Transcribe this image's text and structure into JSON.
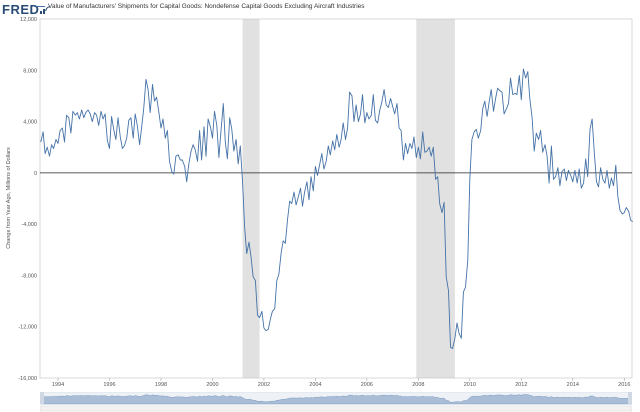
{
  "header": {
    "logo_text": "FRED",
    "legend_label": "Value of Manufacturers' Shipments for Capital Goods: Nondefense Capital Goods Excluding Aircraft Industries"
  },
  "chart_data": {
    "type": "line",
    "title": "",
    "xlabel": "",
    "ylabel": "Change from Year Ago, Millions of Dollars",
    "xlim": [
      1993.3,
      2016.3
    ],
    "ylim": [
      -16000,
      12000
    ],
    "x_ticks": [
      "1994",
      "1996",
      "1998",
      "2000",
      "2002",
      "2004",
      "2006",
      "2008",
      "2010",
      "2012",
      "2014",
      "2016"
    ],
    "y_ticks": [
      "12,000",
      "8,000",
      "4,000",
      "0",
      "-4,000",
      "-8,000",
      "-12,000",
      "-16,000"
    ],
    "grid": false,
    "zero_line": true,
    "line_color": "#4572a7",
    "recession_color": "#e1e1e1",
    "recessions": [
      {
        "start": 2001.17,
        "end": 2001.83
      },
      {
        "start": 2007.92,
        "end": 2009.42
      }
    ],
    "series": [
      {
        "name": "Value of Manufacturers' Shipments for Capital Goods: Nondefense Capital Goods Excluding Aircraft Industries",
        "points": [
          [
            1993.33,
            2400
          ],
          [
            1993.42,
            3200
          ],
          [
            1993.5,
            1500
          ],
          [
            1993.58,
            2000
          ],
          [
            1993.67,
            1300
          ],
          [
            1993.75,
            2200
          ],
          [
            1993.83,
            1900
          ],
          [
            1993.92,
            2600
          ],
          [
            1994.0,
            2300
          ],
          [
            1994.08,
            3300
          ],
          [
            1994.17,
            3500
          ],
          [
            1994.25,
            2400
          ],
          [
            1994.33,
            4500
          ],
          [
            1994.42,
            4300
          ],
          [
            1994.5,
            3100
          ],
          [
            1994.58,
            4800
          ],
          [
            1994.67,
            4500
          ],
          [
            1994.75,
            4700
          ],
          [
            1994.83,
            4200
          ],
          [
            1994.92,
            4900
          ],
          [
            1995.0,
            4300
          ],
          [
            1995.08,
            4700
          ],
          [
            1995.17,
            4900
          ],
          [
            1995.25,
            4600
          ],
          [
            1995.33,
            4000
          ],
          [
            1995.42,
            4700
          ],
          [
            1995.5,
            4500
          ],
          [
            1995.58,
            3700
          ],
          [
            1995.67,
            4800
          ],
          [
            1995.75,
            4200
          ],
          [
            1995.83,
            4600
          ],
          [
            1995.92,
            2500
          ],
          [
            1996.0,
            1900
          ],
          [
            1996.08,
            4400
          ],
          [
            1996.17,
            3300
          ],
          [
            1996.25,
            2600
          ],
          [
            1996.33,
            4300
          ],
          [
            1996.42,
            2800
          ],
          [
            1996.5,
            1900
          ],
          [
            1996.58,
            2100
          ],
          [
            1996.67,
            2700
          ],
          [
            1996.75,
            4100
          ],
          [
            1996.83,
            4300
          ],
          [
            1996.92,
            2700
          ],
          [
            1997.0,
            4600
          ],
          [
            1997.08,
            3700
          ],
          [
            1997.17,
            2200
          ],
          [
            1997.25,
            3600
          ],
          [
            1997.33,
            5000
          ],
          [
            1997.42,
            7300
          ],
          [
            1997.5,
            6500
          ],
          [
            1997.58,
            4700
          ],
          [
            1997.67,
            6900
          ],
          [
            1997.75,
            5600
          ],
          [
            1997.83,
            5900
          ],
          [
            1997.92,
            4700
          ],
          [
            1998.0,
            3500
          ],
          [
            1998.08,
            4200
          ],
          [
            1998.17,
            2700
          ],
          [
            1998.25,
            3300
          ],
          [
            1998.33,
            900
          ],
          [
            1998.42,
            100
          ],
          [
            1998.5,
            -100
          ],
          [
            1998.58,
            1300
          ],
          [
            1998.67,
            1400
          ],
          [
            1998.75,
            1000
          ],
          [
            1998.83,
            1000
          ],
          [
            1998.92,
            500
          ],
          [
            1999.0,
            -700
          ],
          [
            1999.08,
            700
          ],
          [
            1999.17,
            1700
          ],
          [
            1999.25,
            2200
          ],
          [
            1999.33,
            1800
          ],
          [
            1999.42,
            900
          ],
          [
            1999.5,
            3300
          ],
          [
            1999.58,
            1000
          ],
          [
            1999.67,
            3600
          ],
          [
            1999.75,
            1300
          ],
          [
            1999.83,
            4200
          ],
          [
            1999.92,
            3600
          ],
          [
            2000.0,
            2700
          ],
          [
            2000.08,
            4800
          ],
          [
            2000.17,
            3700
          ],
          [
            2000.25,
            1200
          ],
          [
            2000.33,
            3200
          ],
          [
            2000.42,
            5400
          ],
          [
            2000.5,
            2400
          ],
          [
            2000.58,
            1100
          ],
          [
            2000.67,
            4300
          ],
          [
            2000.75,
            3400
          ],
          [
            2000.83,
            1700
          ],
          [
            2000.92,
            2600
          ],
          [
            2001.0,
            700
          ],
          [
            2001.08,
            2100
          ],
          [
            2001.17,
            -800
          ],
          [
            2001.25,
            -4200
          ],
          [
            2001.33,
            -6300
          ],
          [
            2001.42,
            -5400
          ],
          [
            2001.5,
            -6600
          ],
          [
            2001.58,
            -8100
          ],
          [
            2001.67,
            -8400
          ],
          [
            2001.75,
            -11100
          ],
          [
            2001.83,
            -11300
          ],
          [
            2001.92,
            -10800
          ],
          [
            2002.0,
            -12100
          ],
          [
            2002.08,
            -12300
          ],
          [
            2002.17,
            -12200
          ],
          [
            2002.25,
            -11400
          ],
          [
            2002.33,
            -10800
          ],
          [
            2002.42,
            -10600
          ],
          [
            2002.5,
            -8400
          ],
          [
            2002.58,
            -7900
          ],
          [
            2002.67,
            -6200
          ],
          [
            2002.75,
            -5300
          ],
          [
            2002.83,
            -5500
          ],
          [
            2002.92,
            -3600
          ],
          [
            2003.0,
            -2200
          ],
          [
            2003.08,
            -2400
          ],
          [
            2003.17,
            -1500
          ],
          [
            2003.25,
            -2500
          ],
          [
            2003.33,
            -1900
          ],
          [
            2003.42,
            -1200
          ],
          [
            2003.5,
            -2600
          ],
          [
            2003.58,
            -1500
          ],
          [
            2003.67,
            -700
          ],
          [
            2003.75,
            -2100
          ],
          [
            2003.83,
            -300
          ],
          [
            2003.92,
            -1400
          ],
          [
            2004.0,
            500
          ],
          [
            2004.08,
            -200
          ],
          [
            2004.17,
            700
          ],
          [
            2004.25,
            1500
          ],
          [
            2004.33,
            300
          ],
          [
            2004.42,
            900
          ],
          [
            2004.5,
            2100
          ],
          [
            2004.58,
            1400
          ],
          [
            2004.67,
            2500
          ],
          [
            2004.75,
            1800
          ],
          [
            2004.83,
            3000
          ],
          [
            2004.92,
            2000
          ],
          [
            2005.0,
            2600
          ],
          [
            2005.08,
            3900
          ],
          [
            2005.17,
            2600
          ],
          [
            2005.25,
            3500
          ],
          [
            2005.33,
            6300
          ],
          [
            2005.42,
            6000
          ],
          [
            2005.5,
            4000
          ],
          [
            2005.58,
            5300
          ],
          [
            2005.67,
            4000
          ],
          [
            2005.75,
            4600
          ],
          [
            2005.83,
            6100
          ],
          [
            2005.92,
            3900
          ],
          [
            2006.0,
            4700
          ],
          [
            2006.08,
            4200
          ],
          [
            2006.17,
            4500
          ],
          [
            2006.25,
            6100
          ],
          [
            2006.33,
            4100
          ],
          [
            2006.42,
            3900
          ],
          [
            2006.5,
            4900
          ],
          [
            2006.58,
            5500
          ],
          [
            2006.67,
            6500
          ],
          [
            2006.75,
            5300
          ],
          [
            2006.83,
            5100
          ],
          [
            2006.92,
            5800
          ],
          [
            2007.0,
            5200
          ],
          [
            2007.08,
            4600
          ],
          [
            2007.17,
            5400
          ],
          [
            2007.25,
            3500
          ],
          [
            2007.33,
            3300
          ],
          [
            2007.42,
            1000
          ],
          [
            2007.5,
            2300
          ],
          [
            2007.58,
            1500
          ],
          [
            2007.67,
            2300
          ],
          [
            2007.75,
            1900
          ],
          [
            2007.83,
            2800
          ],
          [
            2007.92,
            1200
          ],
          [
            2008.0,
            2000
          ],
          [
            2008.08,
            1100
          ],
          [
            2008.17,
            3200
          ],
          [
            2008.25,
            1600
          ],
          [
            2008.33,
            1700
          ],
          [
            2008.42,
            2000
          ],
          [
            2008.5,
            1300
          ],
          [
            2008.58,
            2000
          ],
          [
            2008.67,
            -500
          ],
          [
            2008.75,
            -300
          ],
          [
            2008.83,
            -2400
          ],
          [
            2008.92,
            -3100
          ],
          [
            2009.0,
            -2300
          ],
          [
            2009.08,
            -8100
          ],
          [
            2009.17,
            -9200
          ],
          [
            2009.25,
            -13600
          ],
          [
            2009.33,
            -13700
          ],
          [
            2009.42,
            -12900
          ],
          [
            2009.5,
            -11700
          ],
          [
            2009.58,
            -12500
          ],
          [
            2009.67,
            -12900
          ],
          [
            2009.75,
            -9300
          ],
          [
            2009.83,
            -8900
          ],
          [
            2009.92,
            -6800
          ],
          [
            2010.0,
            -500
          ],
          [
            2010.08,
            2600
          ],
          [
            2010.17,
            3200
          ],
          [
            2010.25,
            3400
          ],
          [
            2010.33,
            2700
          ],
          [
            2010.42,
            3300
          ],
          [
            2010.5,
            5000
          ],
          [
            2010.58,
            5600
          ],
          [
            2010.67,
            4400
          ],
          [
            2010.75,
            5500
          ],
          [
            2010.83,
            6500
          ],
          [
            2010.92,
            4800
          ],
          [
            2011.0,
            5800
          ],
          [
            2011.08,
            6600
          ],
          [
            2011.17,
            6400
          ],
          [
            2011.25,
            6300
          ],
          [
            2011.33,
            4600
          ],
          [
            2011.42,
            5000
          ],
          [
            2011.5,
            5400
          ],
          [
            2011.58,
            7400
          ],
          [
            2011.67,
            6100
          ],
          [
            2011.75,
            6200
          ],
          [
            2011.83,
            6100
          ],
          [
            2011.92,
            7600
          ],
          [
            2012.0,
            5700
          ],
          [
            2012.08,
            8100
          ],
          [
            2012.17,
            7400
          ],
          [
            2012.25,
            7900
          ],
          [
            2012.33,
            5800
          ],
          [
            2012.42,
            4300
          ],
          [
            2012.5,
            1700
          ],
          [
            2012.58,
            3100
          ],
          [
            2012.67,
            2600
          ],
          [
            2012.75,
            3300
          ],
          [
            2012.83,
            1600
          ],
          [
            2012.92,
            2200
          ],
          [
            2013.0,
            1300
          ],
          [
            2013.08,
            -800
          ],
          [
            2013.17,
            2100
          ],
          [
            2013.25,
            -500
          ],
          [
            2013.33,
            -300
          ],
          [
            2013.42,
            400
          ],
          [
            2013.5,
            -1000
          ],
          [
            2013.58,
            100
          ],
          [
            2013.67,
            300
          ],
          [
            2013.75,
            -600
          ],
          [
            2013.83,
            200
          ],
          [
            2013.92,
            -200
          ],
          [
            2014.0,
            -700
          ],
          [
            2014.08,
            200
          ],
          [
            2014.17,
            -800
          ],
          [
            2014.25,
            300
          ],
          [
            2014.33,
            -1200
          ],
          [
            2014.42,
            -800
          ],
          [
            2014.5,
            1100
          ],
          [
            2014.58,
            -300
          ],
          [
            2014.67,
            3400
          ],
          [
            2014.75,
            4200
          ],
          [
            2014.83,
            1700
          ],
          [
            2014.92,
            -700
          ],
          [
            2015.0,
            -1100
          ],
          [
            2015.08,
            400
          ],
          [
            2015.17,
            -500
          ],
          [
            2015.25,
            -800
          ],
          [
            2015.33,
            200
          ],
          [
            2015.42,
            -1200
          ],
          [
            2015.5,
            -400
          ],
          [
            2015.58,
            -1000
          ],
          [
            2015.67,
            600
          ],
          [
            2015.75,
            -1800
          ],
          [
            2015.83,
            -2900
          ],
          [
            2015.92,
            -3200
          ],
          [
            2016.0,
            -3100
          ],
          [
            2016.08,
            -2700
          ],
          [
            2016.17,
            -3000
          ],
          [
            2016.25,
            -3700
          ],
          [
            2016.33,
            -3800
          ]
        ]
      }
    ]
  }
}
